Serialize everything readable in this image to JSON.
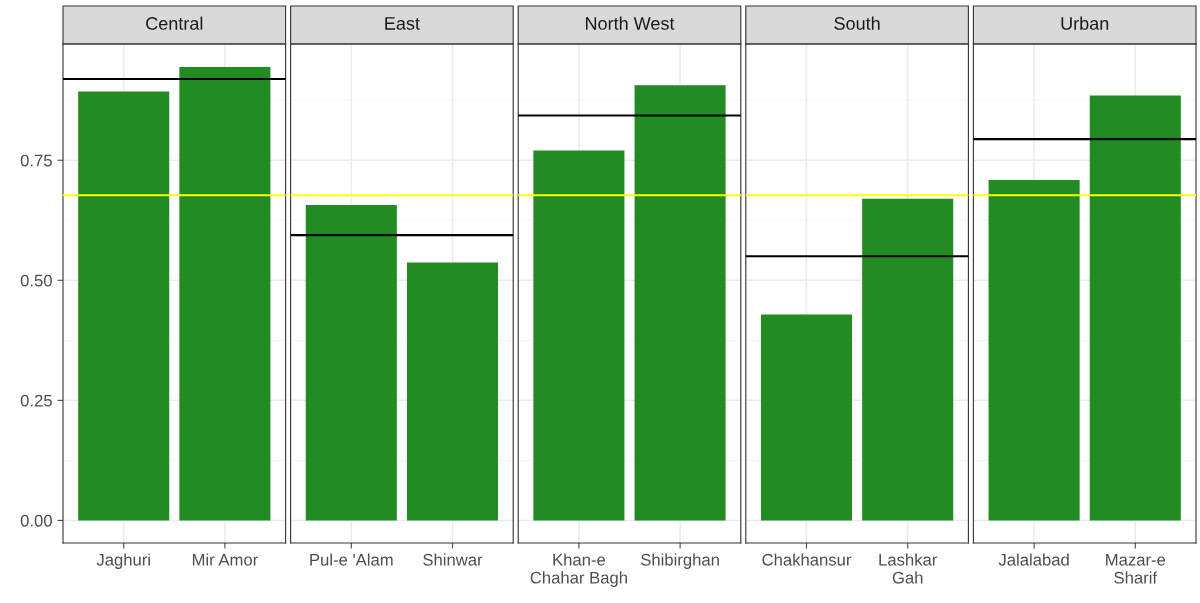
{
  "chart_data": [
    {
      "type": "bar",
      "title": "Central",
      "categories": [
        "Jaghuri",
        "Mir Amor"
      ],
      "values": [
        0.893,
        0.944
      ],
      "color": "#228b22",
      "ylim": [
        -0.047,
        0.992
      ],
      "yticks": [
        {
          "value": 0,
          "label": "0.00"
        },
        {
          "value": 0.25,
          "label": "0.25"
        },
        {
          "value": 0.5,
          "label": "0.50"
        },
        {
          "value": 0.75,
          "label": "0.75"
        }
      ],
      "grid": true,
      "ref_lines": [
        {
          "axis": "y",
          "value": 0.677,
          "color": "#ffff00"
        },
        {
          "axis": "y",
          "value": 0.919,
          "color": "#000000"
        }
      ]
    },
    {
      "type": "bar",
      "title": "East",
      "categories": [
        "Pul-e 'Alam",
        "Shinwar"
      ],
      "values": [
        0.657,
        0.537
      ],
      "color": "#228b22",
      "ylim": [
        -0.047,
        0.992
      ],
      "yticks": [
        0,
        0.25,
        0.5,
        0.75
      ],
      "grid": true,
      "tick_labels": "x",
      "ref_lines": [
        {
          "axis": "y",
          "value": 0.677,
          "color": "#ffff00"
        },
        {
          "axis": "y",
          "value": 0.594,
          "color": "#000000"
        }
      ]
    },
    {
      "type": "bar",
      "title": "North West",
      "categories": [
        "Khan-e\nChahar Bagh",
        "Shibirghan"
      ],
      "values": [
        0.77,
        0.906
      ],
      "color": "#228b22",
      "ylim": [
        -0.047,
        0.992
      ],
      "yticks": [
        0,
        0.25,
        0.5,
        0.75
      ],
      "grid": true,
      "tick_labels": "x",
      "ref_lines": [
        {
          "axis": "y",
          "value": 0.677,
          "color": "#ffff00"
        },
        {
          "axis": "y",
          "value": 0.843,
          "color": "#000000"
        }
      ]
    },
    {
      "type": "bar",
      "title": "South",
      "categories": [
        "Chakhansur",
        "Lashkar\nGah"
      ],
      "values": [
        0.429,
        0.67
      ],
      "color": "#228b22",
      "ylim": [
        -0.047,
        0.992
      ],
      "yticks": [
        0,
        0.25,
        0.5,
        0.75
      ],
      "grid": true,
      "tick_labels": "x",
      "ref_lines": [
        {
          "axis": "y",
          "value": 0.677,
          "color": "#ffff00"
        },
        {
          "axis": "y",
          "value": 0.55,
          "color": "#000000"
        }
      ]
    },
    {
      "type": "bar",
      "title": "Urban",
      "categories": [
        "Jalalabad",
        "Mazar-e\nSharif"
      ],
      "values": [
        0.709,
        0.885
      ],
      "color": "#228b22",
      "ylim": [
        -0.047,
        0.992
      ],
      "yticks": [
        0,
        0.25,
        0.5,
        0.75
      ],
      "grid": true,
      "tick_labels": "x",
      "ref_lines": [
        {
          "axis": "y",
          "value": 0.677,
          "color": "#ffff00"
        },
        {
          "axis": "y",
          "value": 0.794,
          "color": "#000000"
        }
      ]
    }
  ]
}
